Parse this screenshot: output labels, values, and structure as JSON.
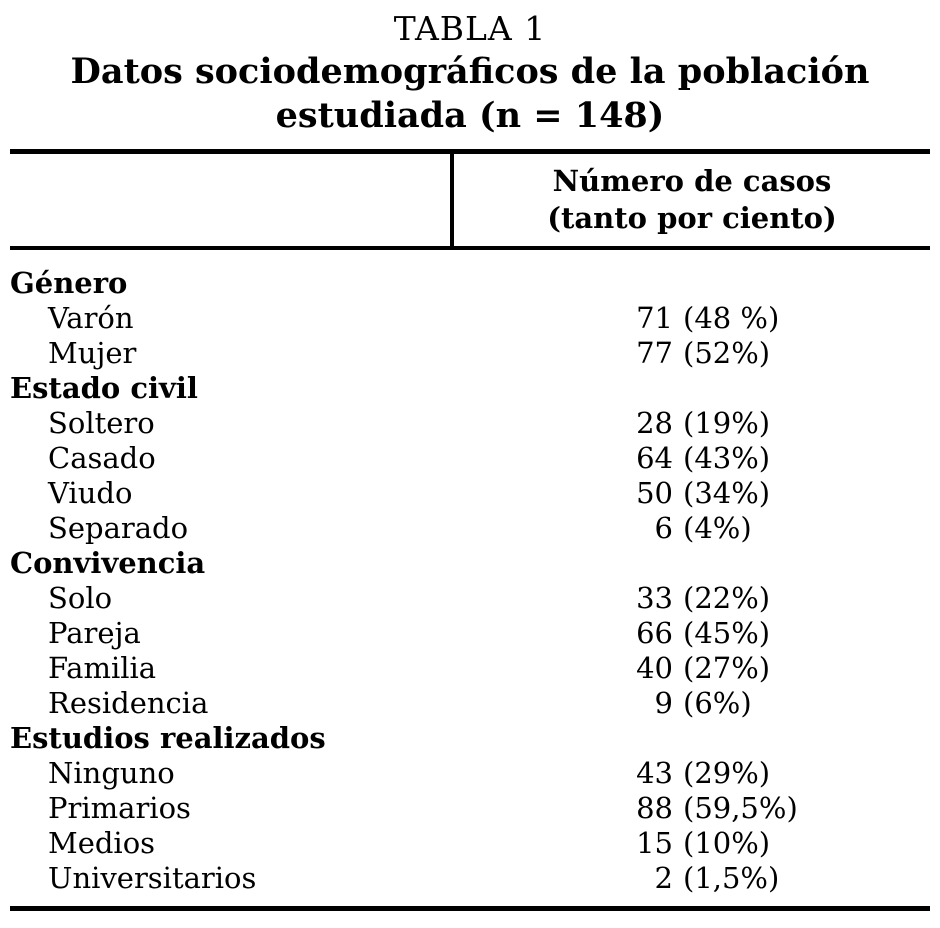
{
  "title": {
    "line1": "TABLA 1",
    "line2": "Datos sociodemográficos de la población",
    "line3": "estudiada (n = 148)"
  },
  "table": {
    "header": {
      "col2_line1": "Número de casos",
      "col2_line2": "(tanto por ciento)"
    },
    "rows": [
      {
        "type": "section",
        "label": "Género"
      },
      {
        "type": "item",
        "label": "Varón",
        "count": "71",
        "pct": "(48 %)"
      },
      {
        "type": "item",
        "label": "Mujer",
        "count": "77",
        "pct": "(52%)"
      },
      {
        "type": "section",
        "label": "Estado civil"
      },
      {
        "type": "item",
        "label": "Soltero",
        "count": "28",
        "pct": "(19%)"
      },
      {
        "type": "item",
        "label": "Casado",
        "count": "64",
        "pct": "(43%)"
      },
      {
        "type": "item",
        "label": "Viudo",
        "count": "50",
        "pct": "(34%)"
      },
      {
        "type": "item",
        "label": "Separado",
        "count": "6",
        "pct": "(4%)"
      },
      {
        "type": "section",
        "label": "Convivencia"
      },
      {
        "type": "item",
        "label": "Solo",
        "count": "33",
        "pct": "(22%)"
      },
      {
        "type": "item",
        "label": "Pareja",
        "count": "66",
        "pct": "(45%)"
      },
      {
        "type": "item",
        "label": "Familia",
        "count": "40",
        "pct": "(27%)"
      },
      {
        "type": "item",
        "label": "Residencia",
        "count": "9",
        "pct": "(6%)"
      },
      {
        "type": "section",
        "label": "Estudios realizados"
      },
      {
        "type": "item",
        "label": "Ninguno",
        "count": "43",
        "pct": "(29%)"
      },
      {
        "type": "item",
        "label": "Primarios",
        "count": "88",
        "pct": "(59,5%)"
      },
      {
        "type": "item",
        "label": "Medios",
        "count": "15",
        "pct": "(10%)"
      },
      {
        "type": "item",
        "label": "Universitarios",
        "count": "2",
        "pct": "(1,5%)"
      }
    ]
  },
  "colors": {
    "text": "#000000",
    "background": "#ffffff",
    "rule": "#000000"
  }
}
